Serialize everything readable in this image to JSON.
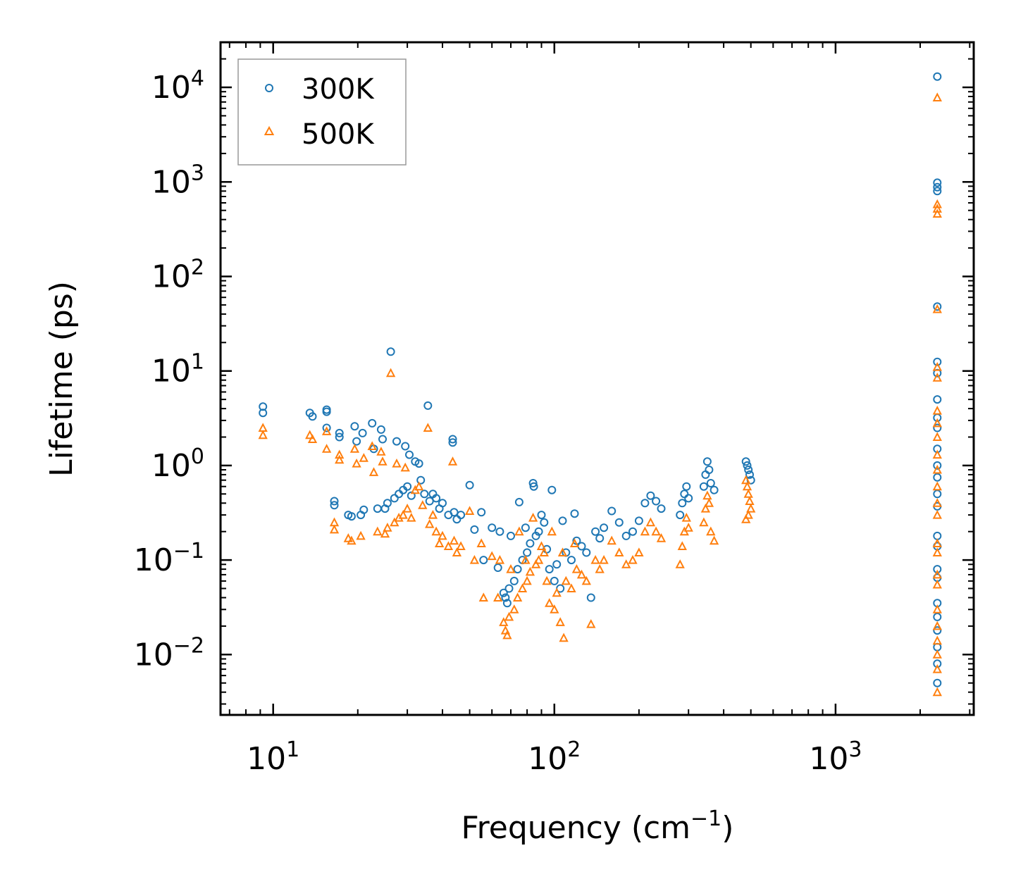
{
  "chart_data": {
    "type": "scatter",
    "title": "",
    "xlabel": "Frequency (cm",
    "xlabel_exponent": "−1",
    "xlabel_suffix": ")",
    "ylabel": "Lifetime (ps)",
    "xscale": "log",
    "yscale": "log",
    "xlim": [
      6.5,
      3100
    ],
    "ylim": [
      0.0023,
      30000
    ],
    "x_ticks": [
      {
        "value": 10,
        "base": "10",
        "exp": "1"
      },
      {
        "value": 100,
        "base": "10",
        "exp": "2"
      },
      {
        "value": 1000,
        "base": "10",
        "exp": "3"
      }
    ],
    "y_ticks": [
      {
        "value": 0.01,
        "base": "10",
        "exp": "−2"
      },
      {
        "value": 0.1,
        "base": "10",
        "exp": "−1"
      },
      {
        "value": 1,
        "base": "10",
        "exp": "0"
      },
      {
        "value": 10,
        "base": "10",
        "exp": "1"
      },
      {
        "value": 100,
        "base": "10",
        "exp": "2"
      },
      {
        "value": 1000,
        "base": "10",
        "exp": "3"
      },
      {
        "value": 10000,
        "base": "10",
        "exp": "4"
      }
    ],
    "legend": {
      "position": "top-left"
    },
    "series": [
      {
        "name": "300K",
        "marker": "circle",
        "color": "#1f77b4",
        "points": [
          [
            9.2,
            4.2
          ],
          [
            9.2,
            3.6
          ],
          [
            13.5,
            3.6
          ],
          [
            13.8,
            3.3
          ],
          [
            15.5,
            3.9
          ],
          [
            15.5,
            3.7
          ],
          [
            15.5,
            2.5
          ],
          [
            16.5,
            0.42
          ],
          [
            16.5,
            0.38
          ],
          [
            17.2,
            2.2
          ],
          [
            17.2,
            2.0
          ],
          [
            18.5,
            0.3
          ],
          [
            19.0,
            0.29
          ],
          [
            19.5,
            2.6
          ],
          [
            19.8,
            1.8
          ],
          [
            20.5,
            0.3
          ],
          [
            20.8,
            2.2
          ],
          [
            21,
            0.34
          ],
          [
            22.5,
            2.8
          ],
          [
            22.8,
            1.5
          ],
          [
            23.5,
            0.35
          ],
          [
            24.2,
            2.4
          ],
          [
            24.5,
            1.9
          ],
          [
            25,
            0.35
          ],
          [
            25.5,
            0.4
          ],
          [
            26.2,
            16.0
          ],
          [
            27,
            0.45
          ],
          [
            27.5,
            1.8
          ],
          [
            28,
            0.5
          ],
          [
            29,
            0.55
          ],
          [
            29.5,
            1.6
          ],
          [
            30,
            0.6
          ],
          [
            30.5,
            1.3
          ],
          [
            31,
            0.48
          ],
          [
            32,
            1.1
          ],
          [
            33,
            1.05
          ],
          [
            33.5,
            0.7
          ],
          [
            34.5,
            0.5
          ],
          [
            35.5,
            4.3
          ],
          [
            36,
            0.42
          ],
          [
            37,
            0.5
          ],
          [
            38,
            0.45
          ],
          [
            39,
            0.35
          ],
          [
            40,
            0.4
          ],
          [
            42,
            0.3
          ],
          [
            43.5,
            1.9
          ],
          [
            43.5,
            1.75
          ],
          [
            44,
            0.32
          ],
          [
            45,
            0.27
          ],
          [
            46.5,
            0.3
          ],
          [
            50,
            0.62
          ],
          [
            52,
            0.21
          ],
          [
            55,
            0.32
          ],
          [
            56,
            0.1
          ],
          [
            60,
            0.22
          ],
          [
            63,
            0.083
          ],
          [
            64,
            0.2
          ],
          [
            66,
            0.045
          ],
          [
            67,
            0.04
          ],
          [
            68,
            0.035
          ],
          [
            69,
            0.05
          ],
          [
            70,
            0.18
          ],
          [
            72,
            0.06
          ],
          [
            74,
            0.08
          ],
          [
            75,
            0.41
          ],
          [
            77,
            0.1
          ],
          [
            79,
            0.22
          ],
          [
            80,
            0.12
          ],
          [
            82,
            0.15
          ],
          [
            84,
            0.65
          ],
          [
            84.5,
            0.6
          ],
          [
            86,
            0.18
          ],
          [
            88,
            0.2
          ],
          [
            90,
            0.3
          ],
          [
            92,
            0.25
          ],
          [
            94,
            0.13
          ],
          [
            96,
            0.08
          ],
          [
            98,
            0.55
          ],
          [
            100,
            0.06
          ],
          [
            102,
            0.09
          ],
          [
            105,
            0.05
          ],
          [
            107,
            0.26
          ],
          [
            110,
            0.12
          ],
          [
            115,
            0.1
          ],
          [
            118,
            0.31
          ],
          [
            120,
            0.16
          ],
          [
            125,
            0.14
          ],
          [
            130,
            0.12
          ],
          [
            135,
            0.04
          ],
          [
            140,
            0.2
          ],
          [
            145,
            0.17
          ],
          [
            150,
            0.22
          ],
          [
            160,
            0.33
          ],
          [
            170,
            0.25
          ],
          [
            180,
            0.18
          ],
          [
            190,
            0.2
          ],
          [
            200,
            0.26
          ],
          [
            210,
            0.4
          ],
          [
            220,
            0.48
          ],
          [
            230,
            0.42
          ],
          [
            240,
            0.35
          ],
          [
            280,
            0.3
          ],
          [
            285,
            0.4
          ],
          [
            290,
            0.5
          ],
          [
            295,
            0.6
          ],
          [
            300,
            0.45
          ],
          [
            340,
            0.6
          ],
          [
            345,
            0.8
          ],
          [
            350,
            1.1
          ],
          [
            355,
            0.9
          ],
          [
            360,
            0.65
          ],
          [
            370,
            0.55
          ],
          [
            480,
            1.1
          ],
          [
            485,
            1.0
          ],
          [
            490,
            0.9
          ],
          [
            495,
            0.8
          ],
          [
            500,
            0.7
          ],
          [
            2300,
            13000
          ],
          [
            2300,
            980
          ],
          [
            2300,
            880
          ],
          [
            2300,
            800
          ],
          [
            2300,
            48
          ],
          [
            2300,
            12.5
          ],
          [
            2300,
            9.5
          ],
          [
            2300,
            5.0
          ],
          [
            2300,
            3.2
          ],
          [
            2300,
            2.5
          ],
          [
            2300,
            1.5
          ],
          [
            2300,
            1.0
          ],
          [
            2300,
            0.75
          ],
          [
            2300,
            0.5
          ],
          [
            2300,
            0.37
          ],
          [
            2300,
            0.18
          ],
          [
            2300,
            0.14
          ],
          [
            2300,
            0.08
          ],
          [
            2300,
            0.065
          ],
          [
            2300,
            0.035
          ],
          [
            2300,
            0.025
          ],
          [
            2300,
            0.018
          ],
          [
            2300,
            0.012
          ],
          [
            2300,
            0.008
          ],
          [
            2300,
            0.005
          ]
        ]
      },
      {
        "name": "500K",
        "marker": "triangle",
        "color": "#ff7f0e",
        "points": [
          [
            9.2,
            2.5
          ],
          [
            9.2,
            2.1
          ],
          [
            13.5,
            2.1
          ],
          [
            13.8,
            1.9
          ],
          [
            15.5,
            2.3
          ],
          [
            15.5,
            1.5
          ],
          [
            16.5,
            0.25
          ],
          [
            16.5,
            0.21
          ],
          [
            17.2,
            1.3
          ],
          [
            17.2,
            1.15
          ],
          [
            18.5,
            0.17
          ],
          [
            19.0,
            0.16
          ],
          [
            19.5,
            1.5
          ],
          [
            19.8,
            1.05
          ],
          [
            20.5,
            0.18
          ],
          [
            21,
            1.2
          ],
          [
            22.5,
            1.6
          ],
          [
            22.8,
            0.85
          ],
          [
            23.5,
            0.2
          ],
          [
            24.2,
            1.4
          ],
          [
            24.5,
            1.1
          ],
          [
            25,
            0.19
          ],
          [
            25.5,
            0.22
          ],
          [
            26.2,
            9.5
          ],
          [
            27,
            0.25
          ],
          [
            27.5,
            1.05
          ],
          [
            28,
            0.28
          ],
          [
            29,
            0.3
          ],
          [
            29.5,
            0.95
          ],
          [
            30,
            0.35
          ],
          [
            31,
            0.28
          ],
          [
            32,
            0.55
          ],
          [
            33,
            0.6
          ],
          [
            34,
            0.38
          ],
          [
            35.5,
            2.5
          ],
          [
            36,
            0.24
          ],
          [
            37,
            0.3
          ],
          [
            38,
            0.2
          ],
          [
            39,
            0.15
          ],
          [
            40,
            0.18
          ],
          [
            42,
            0.14
          ],
          [
            43.5,
            1.1
          ],
          [
            44,
            0.16
          ],
          [
            45,
            0.12
          ],
          [
            46.5,
            0.14
          ],
          [
            50,
            0.33
          ],
          [
            52,
            0.1
          ],
          [
            55,
            0.15
          ],
          [
            56,
            0.04
          ],
          [
            60,
            0.11
          ],
          [
            63,
            0.04
          ],
          [
            64,
            0.1
          ],
          [
            66,
            0.022
          ],
          [
            67,
            0.018
          ],
          [
            68,
            0.016
          ],
          [
            69,
            0.025
          ],
          [
            70,
            0.08
          ],
          [
            72,
            0.03
          ],
          [
            74,
            0.04
          ],
          [
            75,
            0.2
          ],
          [
            77,
            0.05
          ],
          [
            79,
            0.1
          ],
          [
            80,
            0.06
          ],
          [
            82,
            0.075
          ],
          [
            84,
            0.28
          ],
          [
            86,
            0.09
          ],
          [
            88,
            0.1
          ],
          [
            90,
            0.14
          ],
          [
            92,
            0.12
          ],
          [
            94,
            0.06
          ],
          [
            96,
            0.035
          ],
          [
            98,
            0.2
          ],
          [
            100,
            0.03
          ],
          [
            102,
            0.045
          ],
          [
            105,
            0.022
          ],
          [
            107,
            0.12
          ],
          [
            108,
            0.015
          ],
          [
            110,
            0.06
          ],
          [
            115,
            0.05
          ],
          [
            118,
            0.15
          ],
          [
            120,
            0.08
          ],
          [
            125,
            0.07
          ],
          [
            130,
            0.06
          ],
          [
            135,
            0.021
          ],
          [
            140,
            0.1
          ],
          [
            145,
            0.08
          ],
          [
            150,
            0.1
          ],
          [
            160,
            0.16
          ],
          [
            170,
            0.12
          ],
          [
            180,
            0.09
          ],
          [
            190,
            0.1
          ],
          [
            200,
            0.12
          ],
          [
            210,
            0.2
          ],
          [
            220,
            0.25
          ],
          [
            230,
            0.2
          ],
          [
            240,
            0.17
          ],
          [
            280,
            0.09
          ],
          [
            285,
            0.14
          ],
          [
            290,
            0.2
          ],
          [
            295,
            0.28
          ],
          [
            300,
            0.22
          ],
          [
            340,
            0.25
          ],
          [
            345,
            0.35
          ],
          [
            350,
            0.48
          ],
          [
            355,
            0.4
          ],
          [
            360,
            0.2
          ],
          [
            370,
            0.16
          ],
          [
            480,
            0.7
          ],
          [
            485,
            0.6
          ],
          [
            490,
            0.5
          ],
          [
            495,
            0.42
          ],
          [
            500,
            0.35
          ],
          [
            480,
            0.27
          ],
          [
            490,
            0.3
          ],
          [
            2300,
            7800
          ],
          [
            2300,
            580
          ],
          [
            2300,
            520
          ],
          [
            2300,
            460
          ],
          [
            2300,
            45
          ],
          [
            2300,
            11
          ],
          [
            2300,
            8.5
          ],
          [
            2300,
            3.8
          ],
          [
            2300,
            2.8
          ],
          [
            2300,
            2.0
          ],
          [
            2300,
            1.3
          ],
          [
            2300,
            0.9
          ],
          [
            2300,
            0.6
          ],
          [
            2300,
            0.4
          ],
          [
            2300,
            0.3
          ],
          [
            2300,
            0.15
          ],
          [
            2300,
            0.12
          ],
          [
            2300,
            0.07
          ],
          [
            2300,
            0.055
          ],
          [
            2300,
            0.03
          ],
          [
            2300,
            0.02
          ],
          [
            2300,
            0.014
          ],
          [
            2300,
            0.01
          ],
          [
            2300,
            0.007
          ],
          [
            2300,
            0.004
          ]
        ]
      }
    ]
  }
}
